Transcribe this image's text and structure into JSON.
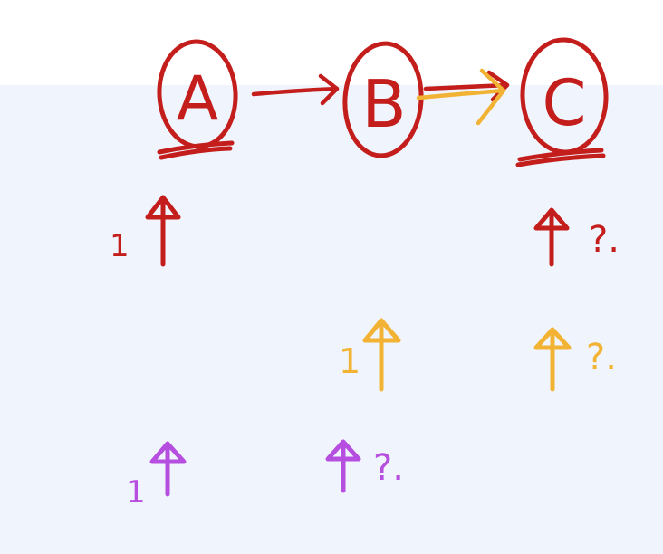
{
  "colors": {
    "red": "#c41e1c",
    "orange": "#f2b233",
    "purple": "#b64ee0",
    "canvas": "#f0f5fd",
    "top": "#ffffff"
  },
  "nodes": [
    {
      "label": "A",
      "underlined": true
    },
    {
      "label": "B",
      "underlined": false
    },
    {
      "label": "C",
      "underlined": true
    }
  ],
  "rows": [
    {
      "color_key": "red",
      "marks": [
        {
          "column": "A",
          "prefix": "1",
          "suffix": ""
        },
        {
          "column": "C",
          "prefix": "",
          "suffix": "?."
        }
      ]
    },
    {
      "color_key": "orange",
      "marks": [
        {
          "column": "B",
          "prefix": "1",
          "suffix": ""
        },
        {
          "column": "C",
          "prefix": "",
          "suffix": "?."
        }
      ]
    },
    {
      "color_key": "purple",
      "marks": [
        {
          "column": "A",
          "prefix": "1",
          "suffix": ""
        },
        {
          "column": "B",
          "prefix": "",
          "suffix": "?."
        }
      ]
    }
  ]
}
